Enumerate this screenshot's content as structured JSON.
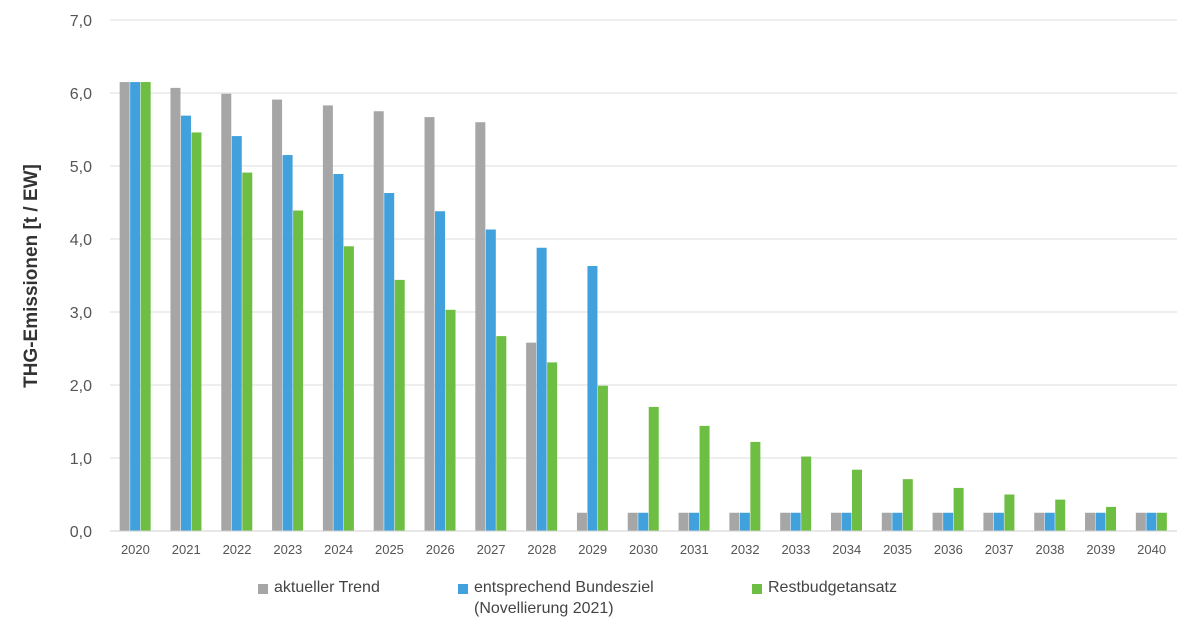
{
  "chart_data": {
    "type": "bar",
    "title": "",
    "xlabel": "",
    "ylabel": "THG-Emissionen [t / EW]",
    "ylim": [
      0,
      7
    ],
    "yticks": [
      "0,0",
      "1,0",
      "2,0",
      "3,0",
      "4,0",
      "5,0",
      "6,0",
      "7,0"
    ],
    "grid": "horizontal",
    "legend_position": "bottom",
    "categories": [
      "2020",
      "2021",
      "2022",
      "2023",
      "2024",
      "2025",
      "2026",
      "2027",
      "2028",
      "2029",
      "2030",
      "2031",
      "2032",
      "2033",
      "2034",
      "2035",
      "2036",
      "2037",
      "2038",
      "2039",
      "2040"
    ],
    "series": [
      {
        "name": "aktueller Trend",
        "color": "#a6a6a6",
        "values": [
          6.15,
          6.07,
          5.99,
          5.91,
          5.83,
          5.75,
          5.67,
          5.6,
          2.58,
          0.25,
          0.25,
          0.25,
          0.25,
          0.25,
          0.25,
          0.25,
          0.25,
          0.25,
          0.25,
          0.25,
          0.25
        ]
      },
      {
        "name": "entsprechend Bundesziel",
        "name_line2": "(Novellierung 2021)",
        "color": "#41a1dc",
        "values": [
          6.15,
          5.69,
          5.41,
          5.15,
          4.89,
          4.63,
          4.38,
          4.13,
          3.88,
          3.63,
          0.25,
          0.25,
          0.25,
          0.25,
          0.25,
          0.25,
          0.25,
          0.25,
          0.25,
          0.25,
          0.25
        ]
      },
      {
        "name": "Restbudgetansatz",
        "color": "#6fbe44",
        "values": [
          6.15,
          5.46,
          4.91,
          4.39,
          3.9,
          3.44,
          3.03,
          2.67,
          2.31,
          1.99,
          1.7,
          1.44,
          1.22,
          1.02,
          0.84,
          0.71,
          0.59,
          0.5,
          0.43,
          0.33,
          0.25
        ]
      }
    ]
  }
}
